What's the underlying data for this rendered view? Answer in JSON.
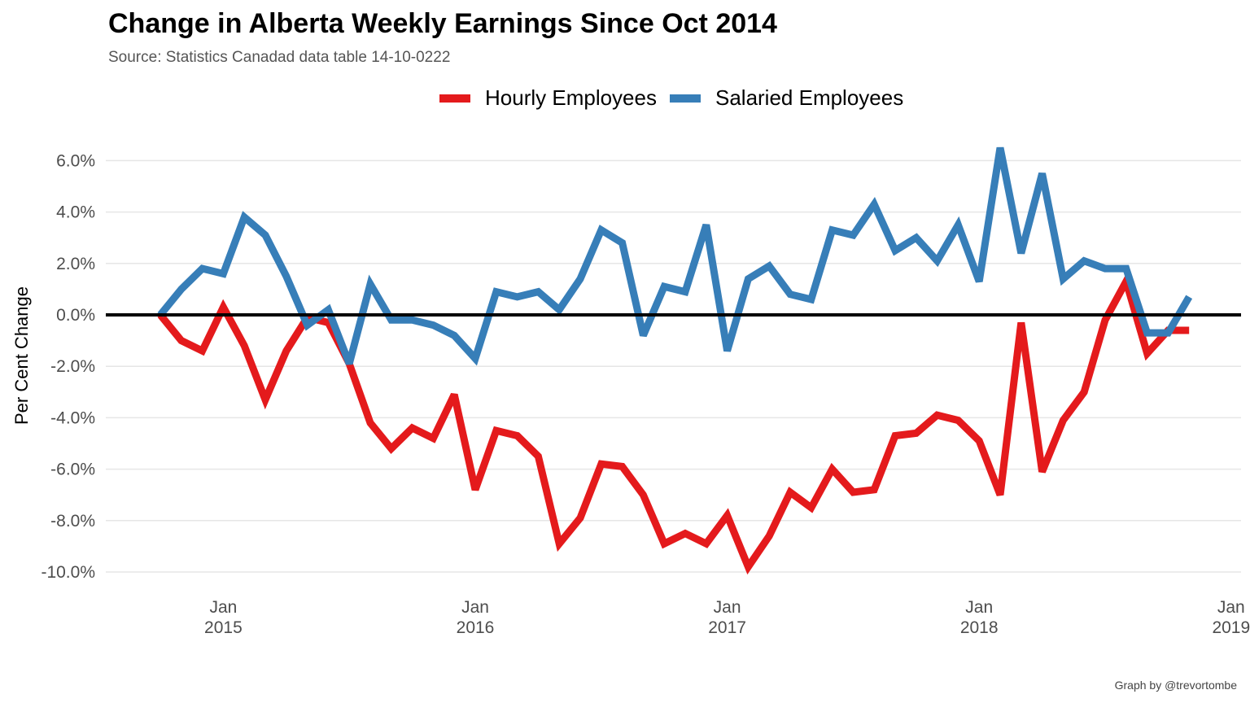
{
  "chart_data": {
    "type": "line",
    "title": "Change in Alberta Weekly Earnings Since Oct 2014",
    "subtitle": "Source: Statistics Canadad data table 14-10-0222",
    "caption": "Graph by @trevortombe",
    "ylabel": "Per Cent Change",
    "xlabel": "",
    "ylim": [
      -10.5,
      6.6
    ],
    "yticks": [
      6,
      4,
      2,
      0,
      -2,
      -4,
      -6,
      -8,
      -10
    ],
    "ytick_labels": [
      "6.0%",
      "4.0%",
      "2.0%",
      "0.0%",
      "-2.0%",
      "-4.0%",
      "-6.0%",
      "-8.0%",
      "-10.0%"
    ],
    "x_start": "2014-10",
    "xticks": [
      {
        "month_index": 3,
        "label_top": "Jan",
        "label_bottom": "2015"
      },
      {
        "month_index": 15,
        "label_top": "Jan",
        "label_bottom": "2016"
      },
      {
        "month_index": 27,
        "label_top": "Jan",
        "label_bottom": "2017"
      },
      {
        "month_index": 39,
        "label_top": "Jan",
        "label_bottom": "2018"
      },
      {
        "month_index": 51,
        "label_top": "Jan",
        "label_bottom": "2019"
      }
    ],
    "grid": true,
    "zero_line": true,
    "legend_position": "top",
    "series": [
      {
        "name": "Hourly Employees",
        "color": "#e41a1c",
        "values": [
          0.0,
          -1.0,
          -1.4,
          0.3,
          -1.2,
          -3.3,
          -1.4,
          -0.1,
          -0.3,
          -1.9,
          -4.2,
          -5.2,
          -4.4,
          -4.8,
          -3.1,
          -6.8,
          -4.5,
          -4.7,
          -5.5,
          -8.9,
          -7.9,
          -5.8,
          -5.9,
          -7.0,
          -8.9,
          -8.5,
          -8.9,
          -7.8,
          -9.8,
          -8.6,
          -6.9,
          -7.5,
          -6.0,
          -6.9,
          -6.8,
          -4.7,
          -4.6,
          -3.9,
          -4.1,
          -4.9,
          -7.0,
          -0.3,
          -6.1,
          -4.1,
          -3.0,
          -0.2,
          1.3,
          -1.5,
          -0.6,
          -0.6
        ]
      },
      {
        "name": "Salaried Employees",
        "color": "#377eb8",
        "values": [
          0.0,
          1.0,
          1.8,
          1.6,
          3.8,
          3.1,
          1.5,
          -0.4,
          0.2,
          -1.9,
          1.2,
          -0.2,
          -0.2,
          -0.4,
          -0.8,
          -1.7,
          0.9,
          0.7,
          0.9,
          0.2,
          1.4,
          3.3,
          2.8,
          -0.8,
          1.1,
          0.9,
          3.5,
          -1.4,
          1.4,
          1.9,
          0.8,
          0.6,
          3.3,
          3.1,
          4.3,
          2.5,
          3.0,
          2.1,
          3.5,
          1.3,
          6.5,
          2.4,
          5.5,
          1.4,
          2.1,
          1.8,
          1.8,
          -0.7,
          -0.7,
          0.7
        ]
      }
    ]
  }
}
